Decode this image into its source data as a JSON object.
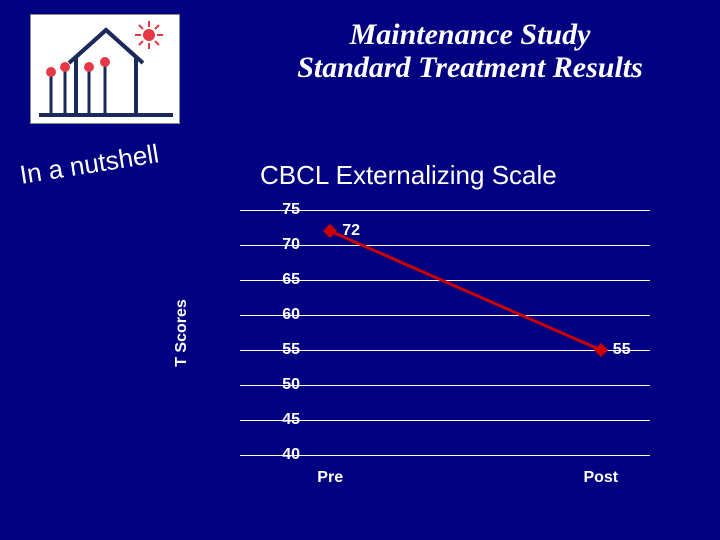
{
  "slide": {
    "background_color": "#000080",
    "title_line1": "Maintenance Study",
    "title_line2": "Standard Treatment Results",
    "title_color": "#ffffff",
    "title_fontsize": 30,
    "nutshell_text": "In a nutshell",
    "nutshell_color": "#ffffff",
    "nutshell_fontsize": 26,
    "subtitle": "CBCL Externalizing Scale",
    "subtitle_color": "#ffffff",
    "subtitle_fontsize": 26
  },
  "logo": {
    "sun_color": "#e63946",
    "building_color": "#1b2a5b",
    "flower_stem_color": "#1b2a5b",
    "flower_head_color": "#e63946",
    "background_color": "#ffffff"
  },
  "chart": {
    "type": "line",
    "x_categories": [
      "Pre",
      "Post"
    ],
    "series": {
      "values": [
        72,
        55
      ],
      "color": "#cc0000",
      "line_width": 3,
      "marker": "diamond",
      "marker_size": 10,
      "show_value_labels": true
    },
    "yaxis": {
      "label": "T Scores",
      "min": 40,
      "max": 75,
      "tick_step": 5,
      "ticks": [
        40,
        45,
        50,
        55,
        60,
        65,
        70,
        75
      ]
    },
    "tick_label_color": "#ffffff",
    "tick_label_fontsize": 16,
    "axis_title_fontsize": 16,
    "grid_color": "#ffffff",
    "grid_width": 1,
    "background_color": "#000080",
    "value_label_color": "#ffffff",
    "value_label_fontsize": 16
  }
}
